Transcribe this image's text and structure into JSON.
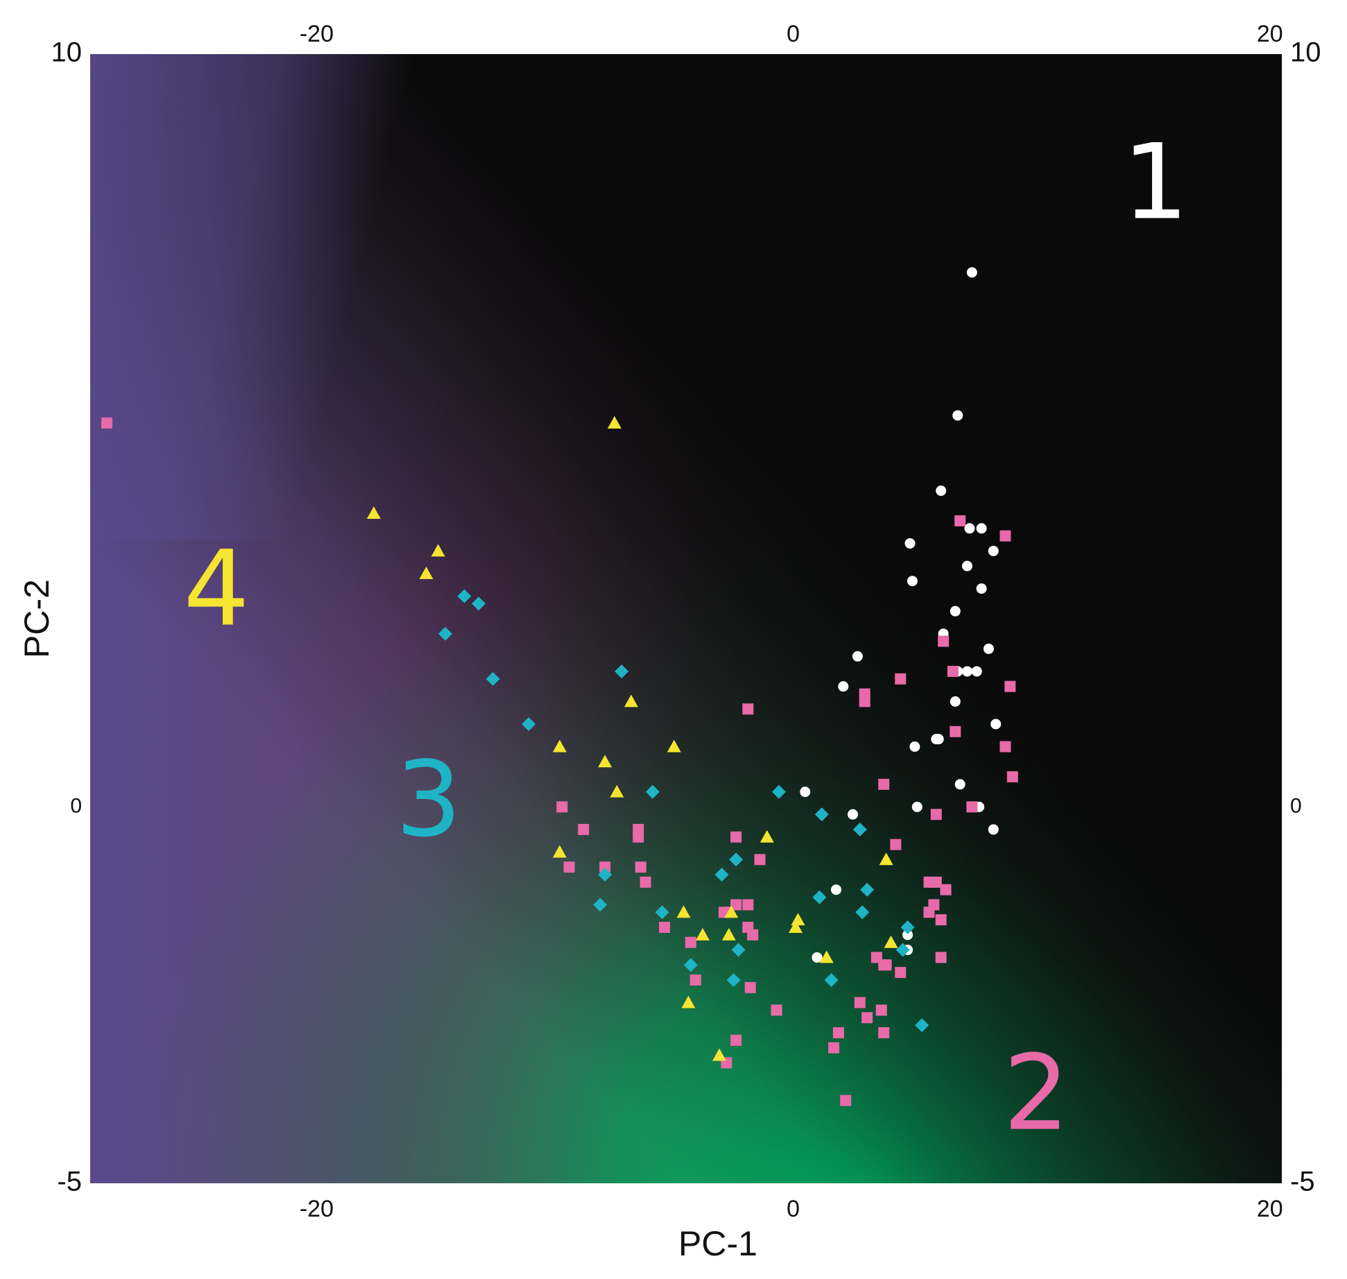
{
  "chart_data": {
    "type": "scatter",
    "title": "",
    "xlabel": "PC-1",
    "ylabel": "PC-2",
    "xlim": [
      -29.5,
      20.5
    ],
    "ylim": [
      -5,
      10
    ],
    "xticks": [
      {
        "value": -20,
        "label": "-20"
      },
      {
        "value": 0,
        "label": "0"
      },
      {
        "value": 20,
        "label": "20"
      }
    ],
    "yticks": [
      {
        "value": 10,
        "label": "10"
      },
      {
        "value": 0,
        "label": "0"
      },
      {
        "value": -5,
        "label": "-5"
      }
    ],
    "top_ticks_mirrored": true,
    "right_ticks_mirrored": true,
    "grid": false,
    "background_regions": [
      {
        "label": "1",
        "color": "#000000"
      },
      {
        "label": "2",
        "color": "#00a862"
      },
      {
        "label": "3",
        "color": "#6e3b66"
      },
      {
        "label": "4",
        "color": "#5a4a8c"
      }
    ],
    "cluster_labels": [
      {
        "text": "1",
        "x": 15.2,
        "y": 8.2,
        "color": "#ffffff"
      },
      {
        "text": "2",
        "x": 10.2,
        "y": -3.9,
        "color": "#e86aa8"
      },
      {
        "text": "3",
        "x": -15.3,
        "y": 0.0,
        "color": "#1fb3c6"
      },
      {
        "text": "4",
        "x": -24.2,
        "y": 2.8,
        "color": "#f5e431"
      }
    ],
    "series": [
      {
        "marker": "circle",
        "color": "#ffffff",
        "points": [
          [
            7.5,
            7.1
          ],
          [
            6.9,
            5.2
          ],
          [
            6.2,
            4.2
          ],
          [
            7.4,
            3.7
          ],
          [
            7.9,
            3.7
          ],
          [
            8.4,
            3.4
          ],
          [
            4.9,
            3.5
          ],
          [
            5.0,
            3.0
          ],
          [
            7.3,
            3.2
          ],
          [
            7.9,
            2.9
          ],
          [
            6.8,
            2.6
          ],
          [
            6.3,
            2.3
          ],
          [
            8.2,
            2.1
          ],
          [
            2.7,
            2.0
          ],
          [
            2.1,
            1.6
          ],
          [
            6.9,
            1.8
          ],
          [
            7.3,
            1.8
          ],
          [
            7.7,
            1.8
          ],
          [
            6.8,
            1.4
          ],
          [
            8.5,
            1.1
          ],
          [
            6.0,
            0.9
          ],
          [
            5.1,
            0.8
          ],
          [
            6.1,
            0.9
          ],
          [
            7.0,
            0.3
          ],
          [
            0.5,
            0.2
          ],
          [
            5.2,
            0.0
          ],
          [
            7.8,
            0.0
          ],
          [
            2.5,
            -0.1
          ],
          [
            8.4,
            -0.3
          ],
          [
            1.8,
            -1.1
          ],
          [
            4.8,
            -1.7
          ],
          [
            4.8,
            -1.9
          ],
          [
            1.0,
            -2.0
          ]
        ]
      },
      {
        "marker": "square",
        "color": "#e86aa8",
        "points": [
          [
            -28.8,
            5.1
          ],
          [
            7.0,
            3.8
          ],
          [
            8.9,
            3.6
          ],
          [
            6.3,
            2.2
          ],
          [
            6.7,
            1.8
          ],
          [
            4.5,
            1.7
          ],
          [
            3.0,
            1.5
          ],
          [
            3.0,
            1.4
          ],
          [
            9.1,
            1.6
          ],
          [
            -1.9,
            1.3
          ],
          [
            6.8,
            1.0
          ],
          [
            8.9,
            0.8
          ],
          [
            9.2,
            0.4
          ],
          [
            3.8,
            0.3
          ],
          [
            7.5,
            0.0
          ],
          [
            6.0,
            -0.1
          ],
          [
            -9.7,
            0.0
          ],
          [
            -8.8,
            -0.3
          ],
          [
            -6.5,
            -0.3
          ],
          [
            -6.5,
            -0.4
          ],
          [
            -2.4,
            -0.4
          ],
          [
            4.3,
            -0.5
          ],
          [
            -1.4,
            -0.7
          ],
          [
            -9.4,
            -0.8
          ],
          [
            -7.9,
            -0.8
          ],
          [
            -6.4,
            -0.8
          ],
          [
            -6.2,
            -1.0
          ],
          [
            6.0,
            -1.0
          ],
          [
            5.7,
            -1.0
          ],
          [
            6.4,
            -1.1
          ],
          [
            -2.9,
            -1.4
          ],
          [
            -2.7,
            -1.4
          ],
          [
            -2.4,
            -1.3
          ],
          [
            -1.9,
            -1.3
          ],
          [
            -1.9,
            -1.6
          ],
          [
            5.9,
            -1.3
          ],
          [
            -5.4,
            -1.6
          ],
          [
            6.2,
            -1.5
          ],
          [
            -4.3,
            -1.8
          ],
          [
            -1.7,
            -1.7
          ],
          [
            5.7,
            -1.4
          ],
          [
            3.8,
            -2.1
          ],
          [
            3.9,
            -2.1
          ],
          [
            3.5,
            -2.0
          ],
          [
            4.5,
            -2.2
          ],
          [
            6.2,
            -2.0
          ],
          [
            -4.1,
            -2.3
          ],
          [
            -1.8,
            -2.4
          ],
          [
            2.8,
            -2.6
          ],
          [
            3.7,
            -2.7
          ],
          [
            -0.7,
            -2.7
          ],
          [
            3.1,
            -2.8
          ],
          [
            3.8,
            -3.0
          ],
          [
            1.9,
            -3.0
          ],
          [
            -2.4,
            -3.1
          ],
          [
            1.7,
            -3.2
          ],
          [
            -2.8,
            -3.4
          ],
          [
            2.2,
            -3.9
          ]
        ]
      },
      {
        "marker": "diamond",
        "color": "#1fb3c6",
        "points": [
          [
            -13.8,
            2.8
          ],
          [
            -13.2,
            2.7
          ],
          [
            -14.6,
            2.3
          ],
          [
            -12.6,
            1.7
          ],
          [
            -7.2,
            1.8
          ],
          [
            -11.1,
            1.1
          ],
          [
            -5.9,
            0.2
          ],
          [
            -0.6,
            0.2
          ],
          [
            1.2,
            -0.1
          ],
          [
            2.8,
            -0.3
          ],
          [
            -7.9,
            -0.9
          ],
          [
            -3.0,
            -0.9
          ],
          [
            -2.4,
            -0.7
          ],
          [
            3.1,
            -1.1
          ],
          [
            1.1,
            -1.2
          ],
          [
            -8.1,
            -1.3
          ],
          [
            -5.5,
            -1.4
          ],
          [
            2.9,
            -1.4
          ],
          [
            4.8,
            -1.6
          ],
          [
            -2.3,
            -1.9
          ],
          [
            4.6,
            -1.9
          ],
          [
            -4.3,
            -2.1
          ],
          [
            1.6,
            -2.3
          ],
          [
            -2.5,
            -2.3
          ],
          [
            5.4,
            -2.9
          ]
        ]
      },
      {
        "marker": "triangle",
        "color": "#f5e431",
        "points": [
          [
            -7.5,
            5.1
          ],
          [
            -17.6,
            3.9
          ],
          [
            -14.9,
            3.4
          ],
          [
            -15.4,
            3.1
          ],
          [
            -6.8,
            1.4
          ],
          [
            -9.8,
            0.8
          ],
          [
            -5.0,
            0.8
          ],
          [
            -7.9,
            0.6
          ],
          [
            -7.4,
            0.2
          ],
          [
            -1.1,
            -0.4
          ],
          [
            -9.8,
            -0.6
          ],
          [
            3.9,
            -0.7
          ],
          [
            -4.6,
            -1.4
          ],
          [
            -2.6,
            -1.4
          ],
          [
            0.2,
            -1.5
          ],
          [
            0.1,
            -1.6
          ],
          [
            -3.8,
            -1.7
          ],
          [
            -2.7,
            -1.7
          ],
          [
            4.1,
            -1.8
          ],
          [
            1.4,
            -2.0
          ],
          [
            -4.4,
            -2.6
          ],
          [
            -3.1,
            -3.3
          ]
        ]
      }
    ]
  }
}
